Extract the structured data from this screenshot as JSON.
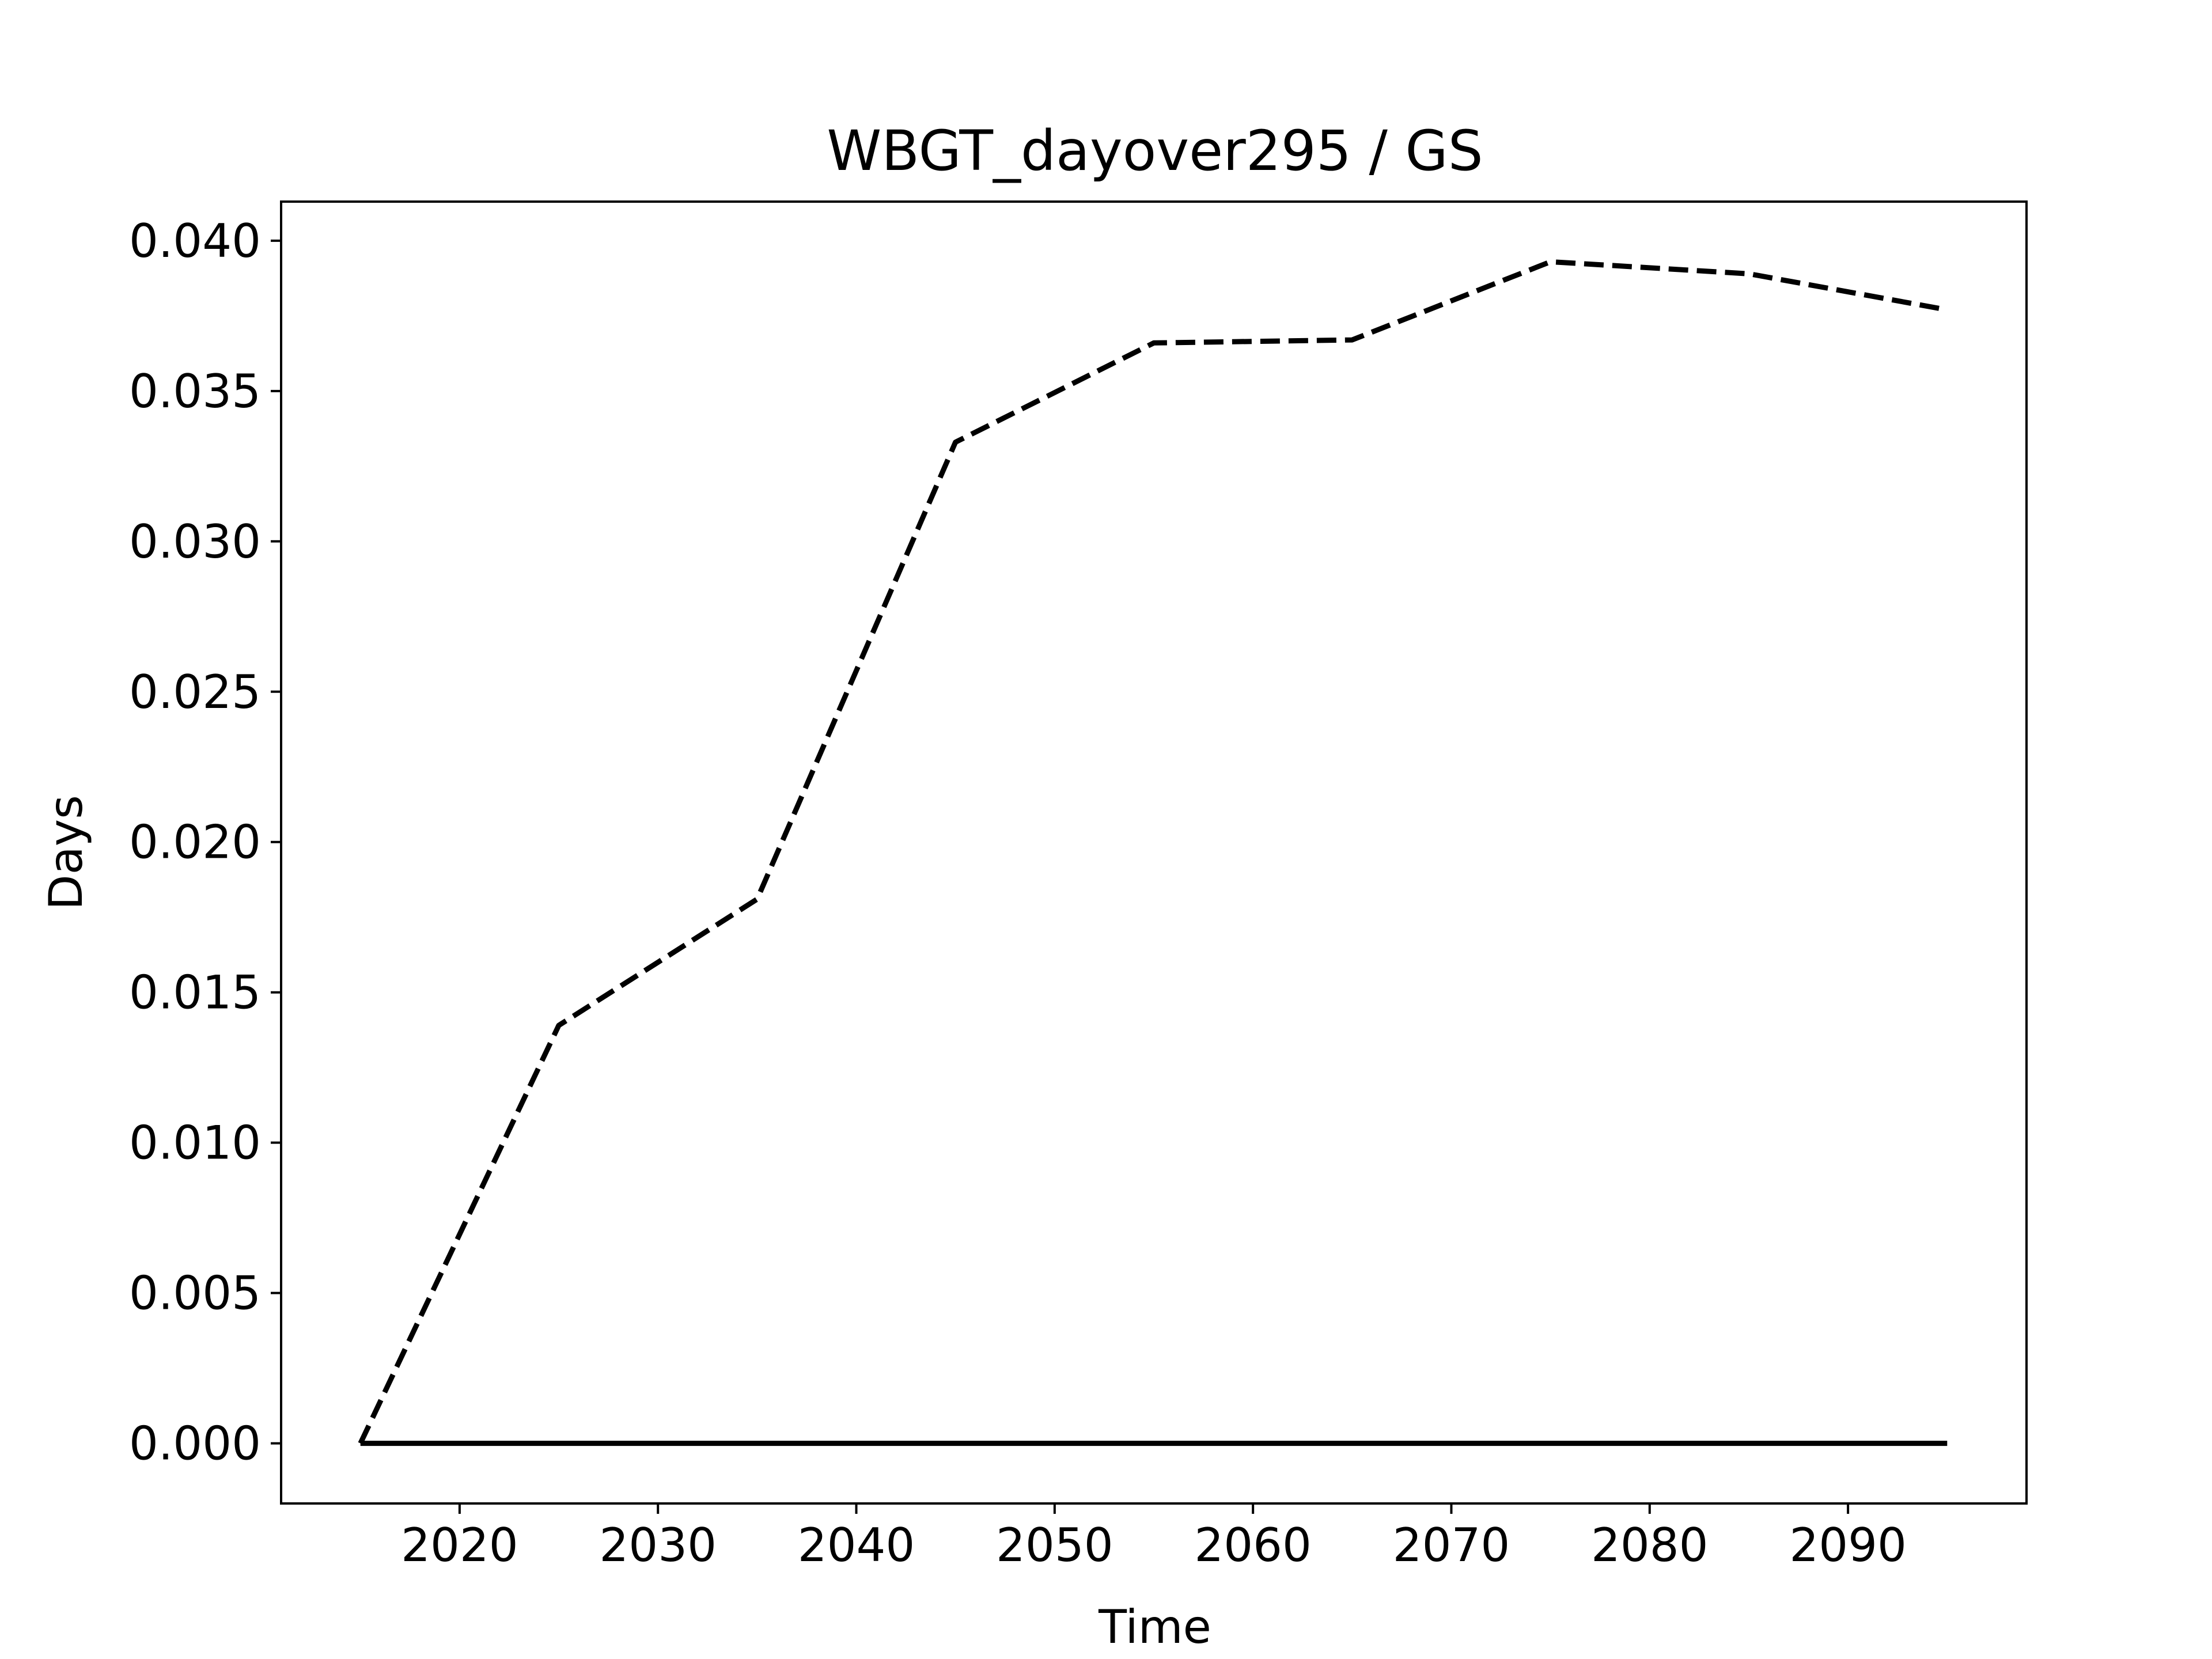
{
  "chart_data": {
    "type": "line",
    "title": "WBGT_dayover295 / GS",
    "xlabel": "Time",
    "ylabel": "Days",
    "xlim": [
      2011,
      2099
    ],
    "ylim": [
      -0.002,
      0.0413
    ],
    "x_ticks": [
      "2020",
      "2030",
      "2040",
      "2050",
      "2060",
      "2070",
      "2080",
      "2090"
    ],
    "y_ticks": [
      "0.000",
      "0.005",
      "0.010",
      "0.015",
      "0.020",
      "0.025",
      "0.030",
      "0.035",
      "0.040"
    ],
    "grid": false,
    "legend": "none",
    "series": [
      {
        "style": "dashed",
        "color": "#000000",
        "x": [
          2015,
          2025,
          2035,
          2045,
          2055,
          2065,
          2075,
          2085,
          2095
        ],
        "y": [
          0.0,
          0.0139,
          0.0181,
          0.0333,
          0.0366,
          0.0367,
          0.0393,
          0.0389,
          0.0377
        ]
      },
      {
        "style": "solid",
        "color": "#000000",
        "x": [
          2015,
          2025,
          2035,
          2045,
          2055,
          2065,
          2075,
          2085,
          2095
        ],
        "y": [
          0.0,
          0.0,
          0.0,
          0.0,
          0.0,
          0.0,
          0.0,
          0.0,
          0.0
        ]
      }
    ]
  }
}
